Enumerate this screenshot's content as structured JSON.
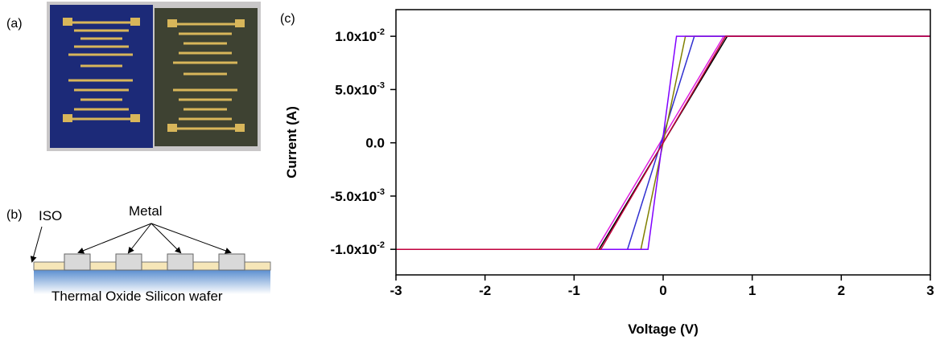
{
  "figure": {
    "panel_labels": [
      "(a)",
      "(b)",
      "(c)"
    ],
    "diagram": {
      "iso": "ISO",
      "metal": "Metal",
      "substrate": "Thermal Oxide Silicon wafer"
    }
  },
  "chart_data": {
    "type": "line",
    "x_label": "Voltage (V)",
    "y_label": "Current (A)",
    "xlim": [
      -3,
      3
    ],
    "ylim": [
      -0.0124,
      0.0125
    ],
    "xticks": [
      -3,
      -2,
      -1,
      0,
      1,
      2,
      3
    ],
    "yticks": [
      {
        "value": 0.01,
        "label": "1.0x10",
        "exponent": "-2"
      },
      {
        "value": 0.005,
        "label": "5.0x10",
        "exponent": "-3"
      },
      {
        "value": 0,
        "label": "0.0"
      },
      {
        "value": -0.005,
        "label": "-5.0x10",
        "exponent": "-3"
      },
      {
        "value": -0.01,
        "label": "-1.0x10",
        "exponent": "-2"
      }
    ],
    "series": [
      {
        "color": "#000000",
        "x": [
          -3,
          -0.72,
          0.72,
          3
        ],
        "values": [
          -0.01,
          -0.01,
          0.01,
          0.01
        ]
      },
      {
        "color": "#e020e0",
        "x": [
          -3,
          -0.75,
          0.68,
          3
        ],
        "values": [
          -0.01,
          -0.01,
          0.01,
          0.01
        ]
      },
      {
        "color": "#3030d0",
        "x": [
          -3,
          -0.4,
          0.35,
          3
        ],
        "values": [
          -0.01,
          -0.01,
          0.01,
          0.01
        ]
      },
      {
        "color": "#808000",
        "x": [
          -3,
          -0.25,
          0.25,
          3
        ],
        "values": [
          -0.01,
          -0.01,
          0.01,
          0.01
        ]
      },
      {
        "color": "#8000ff",
        "x": [
          -3,
          -0.17,
          0.15,
          3
        ],
        "values": [
          -0.01,
          -0.01,
          0.01,
          0.01
        ]
      },
      {
        "color": "#c0003c",
        "x": [
          -3,
          -0.7,
          0.7,
          3
        ],
        "values": [
          -0.01,
          -0.01,
          0.01,
          0.01
        ]
      }
    ]
  }
}
